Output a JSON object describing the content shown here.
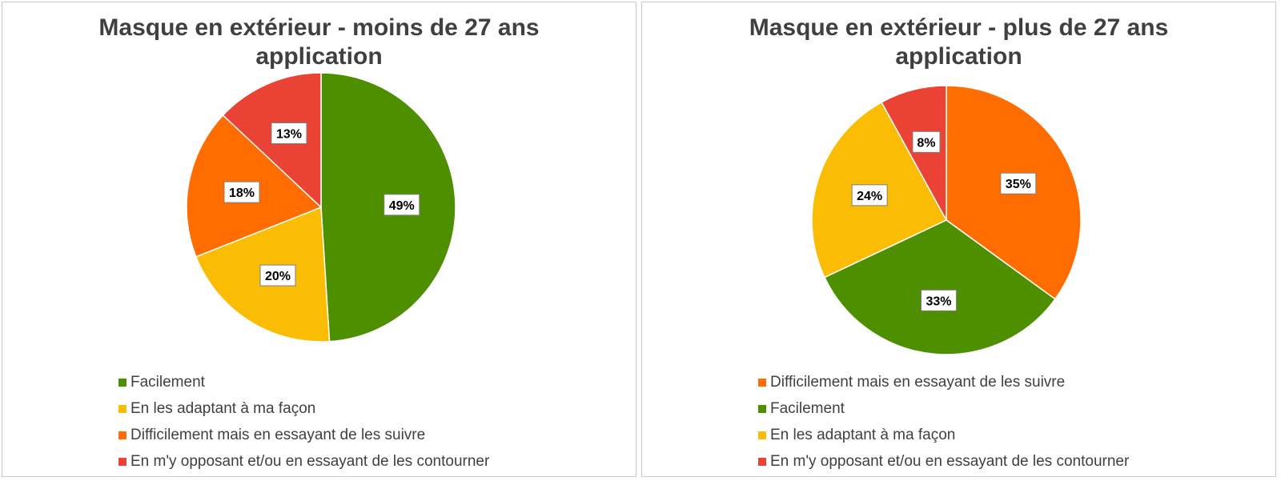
{
  "chart_data": [
    {
      "type": "pie",
      "title_lines": [
        "Masque en extérieur - moins de 27 ans",
        "application"
      ],
      "slices": [
        {
          "name": "Facilement",
          "value": 49,
          "label": "49%",
          "color": "#4e8f00"
        },
        {
          "name": "En les adaptant à ma façon",
          "value": 20,
          "label": "20%",
          "color": "#fbbc04"
        },
        {
          "name": "Difficilement mais en essayant de les suivre",
          "value": 18,
          "label": "18%",
          "color": "#ff6d01"
        },
        {
          "name": "En m'y opposant et/ou en essayant de les contourner",
          "value": 13,
          "label": "13%",
          "color": "#ea4335"
        }
      ],
      "legend_position": "bottom"
    },
    {
      "type": "pie",
      "title_lines": [
        "Masque en extérieur - plus de 27 ans",
        "application"
      ],
      "slices": [
        {
          "name": "Difficilement mais en essayant de les suivre",
          "value": 35,
          "label": "35%",
          "color": "#ff6d01"
        },
        {
          "name": "Facilement",
          "value": 33,
          "label": "33%",
          "color": "#4e8f00"
        },
        {
          "name": "En les adaptant à ma façon",
          "value": 24,
          "label": "24%",
          "color": "#fbbc04"
        },
        {
          "name": "En m'y opposant et/ou en essayant de les contourner",
          "value": 8,
          "label": "8%",
          "color": "#ea4335"
        }
      ],
      "legend_position": "bottom"
    }
  ]
}
